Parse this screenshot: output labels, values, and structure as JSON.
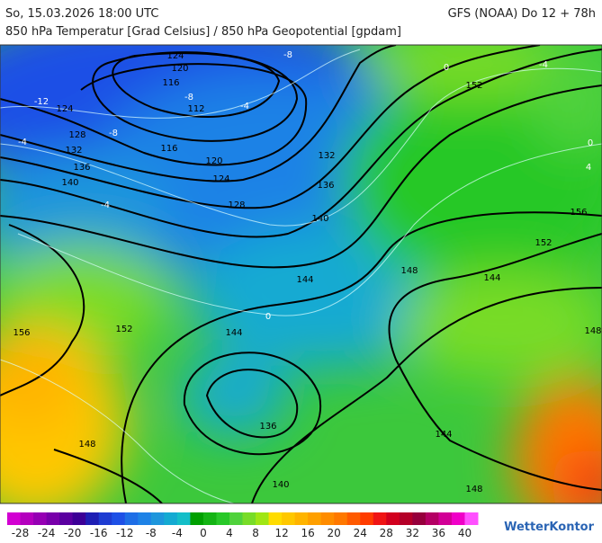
{
  "header": {
    "left": "So, 15.03.2026 18:00 UTC",
    "right": "GFS (NOAA) Do 12 + 78h",
    "subtitle": "850 hPa Temperatur [Grad Celsius] / 850 hPa Geopotential [gpdam]"
  },
  "map": {
    "geopotential_labels": [
      124,
      120,
      116,
      112,
      116,
      120,
      124,
      128,
      132,
      136,
      140,
      152,
      156,
      152,
      148,
      144,
      144,
      124,
      128,
      132,
      136,
      140,
      156,
      152,
      144,
      136,
      148,
      140,
      144,
      148,
      148
    ],
    "temperature_labels": [
      -8,
      -4,
      -12,
      -8,
      -8,
      -4,
      -4,
      0,
      -4,
      0,
      4,
      0
    ]
  },
  "colorbar": {
    "range": [
      -30,
      42
    ],
    "ticks": [
      -28,
      -24,
      -20,
      -16,
      -12,
      -8,
      -4,
      0,
      4,
      8,
      12,
      16,
      20,
      24,
      28,
      32,
      36,
      40
    ],
    "colors": [
      "#d200d2",
      "#b400be",
      "#9600b4",
      "#7800aa",
      "#5a00a0",
      "#3c0096",
      "#1e1eb4",
      "#1e3cd2",
      "#1e50e6",
      "#1e6ee6",
      "#1e82e6",
      "#1e96dc",
      "#14aad2",
      "#14bec8",
      "#00a000",
      "#14b414",
      "#28c828",
      "#50d23c",
      "#78dc28",
      "#a0e614",
      "#ffdc00",
      "#ffc800",
      "#ffb400",
      "#ffa000",
      "#ff8c00",
      "#ff7800",
      "#ff5a00",
      "#ff3c00",
      "#f01414",
      "#d2001e",
      "#b40028",
      "#96003c",
      "#b40064",
      "#d20096",
      "#f000c8",
      "#ff50ff"
    ]
  },
  "logo": "WetterKontor"
}
